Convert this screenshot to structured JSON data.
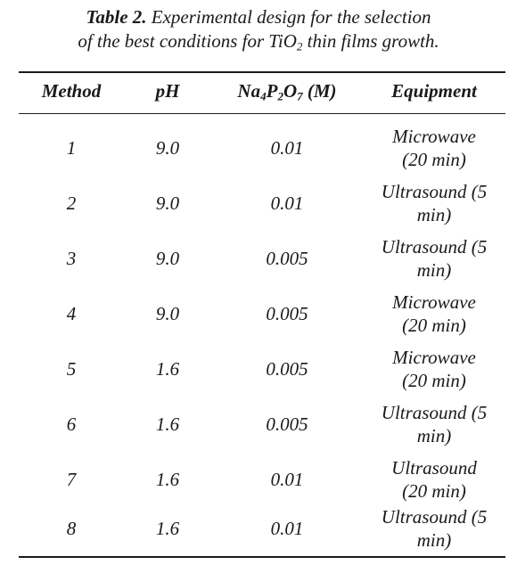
{
  "caption": {
    "label": "Table 2.",
    "line1": "Experimental design for the selection",
    "line2_pre": "of the best conditions for TiO",
    "line2_sub": "2",
    "line2_post": " thin films growth."
  },
  "headers": {
    "method": "Method",
    "ph": "pH",
    "na_sym1": "Na",
    "na_sub1": "4",
    "na_sym2": "P",
    "na_sub2": "2",
    "na_sym3": "O",
    "na_sub3": "7",
    "na_unit": " (M)",
    "equipment": "Equipment"
  },
  "rows": [
    {
      "method": "1",
      "ph": "9.0",
      "na": "0.01",
      "eq1": "Microwave",
      "eq2": "(20 min)"
    },
    {
      "method": "2",
      "ph": "9.0",
      "na": "0.01",
      "eq1": "Ultrasound (5",
      "eq2": "min)"
    },
    {
      "method": "3",
      "ph": "9.0",
      "na": "0.005",
      "eq1": "Ultrasound (5",
      "eq2": "min)"
    },
    {
      "method": "4",
      "ph": "9.0",
      "na": "0.005",
      "eq1": "Microwave",
      "eq2": "(20 min)"
    },
    {
      "method": "5",
      "ph": "1.6",
      "na": "0.005",
      "eq1": "Microwave",
      "eq2": "(20 min)"
    },
    {
      "method": "6",
      "ph": "1.6",
      "na": "0.005",
      "eq1": "Ultrasound (5",
      "eq2": "min)"
    },
    {
      "method": "7",
      "ph": "1.6",
      "na": "0.01",
      "eq1": "Ultrasound",
      "eq2": "(20 min)"
    },
    {
      "method": "8",
      "ph": "1.6",
      "na": "0.01",
      "eq1": "Ultrasound (5",
      "eq2": "min)"
    }
  ]
}
